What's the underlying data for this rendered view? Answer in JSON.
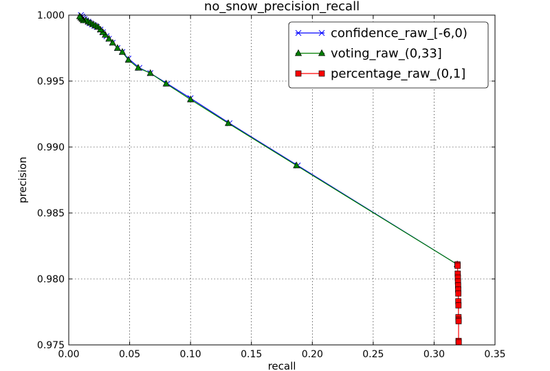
{
  "chart_data": {
    "type": "line",
    "title": "no_snow_precision_recall",
    "xlabel": "recall",
    "ylabel": "precision",
    "xlim": [
      0.0,
      0.35
    ],
    "ylim": [
      0.975,
      1.0
    ],
    "x_ticks": [
      "0.00",
      "0.05",
      "0.10",
      "0.15",
      "0.20",
      "0.25",
      "0.30",
      "0.35"
    ],
    "y_ticks": [
      "0.975",
      "0.980",
      "0.985",
      "0.990",
      "0.995",
      "1.000"
    ],
    "grid": true,
    "legend_position": "top-right",
    "series": [
      {
        "name": "confidence_raw_[-6,0)",
        "color": "#0000ff",
        "marker": "x",
        "x": [
          0.319,
          0.188,
          0.132,
          0.1,
          0.081,
          0.067,
          0.058,
          0.049,
          0.044,
          0.04,
          0.036,
          0.033,
          0.031,
          0.028,
          0.026,
          0.023,
          0.021,
          0.019,
          0.017,
          0.016,
          0.014,
          0.013,
          0.012,
          0.011,
          0.01
        ],
        "y": [
          0.9811,
          0.9886,
          0.9918,
          0.9937,
          0.9948,
          0.9956,
          0.996,
          0.9967,
          0.9972,
          0.9975,
          0.9979,
          0.9982,
          0.9984,
          0.9987,
          0.9989,
          0.9991,
          0.9992,
          0.9993,
          0.9994,
          0.9995,
          0.9996,
          0.9997,
          0.9998,
          0.9999,
          1.0
        ]
      },
      {
        "name": "voting_raw_(0,33]",
        "color": "#008000",
        "marker": "triangle",
        "x": [
          0.319,
          0.187,
          0.131,
          0.1,
          0.08,
          0.067,
          0.057,
          0.049,
          0.044,
          0.04,
          0.036,
          0.033,
          0.03,
          0.028,
          0.026,
          0.024,
          0.022,
          0.02,
          0.018,
          0.016,
          0.014,
          0.012,
          0.011,
          0.01,
          0.009
        ],
        "y": [
          0.9811,
          0.9886,
          0.9918,
          0.9936,
          0.9948,
          0.9956,
          0.996,
          0.9966,
          0.9972,
          0.9975,
          0.9979,
          0.9982,
          0.9985,
          0.9987,
          0.9989,
          0.9991,
          0.9992,
          0.9993,
          0.9994,
          0.9995,
          0.9996,
          0.9996,
          0.9997,
          0.9998,
          0.9999
        ]
      },
      {
        "name": "percentage_raw_(0,1]",
        "color": "#ff0000",
        "marker": "square",
        "x": [
          0.3192,
          0.3193,
          0.3194,
          0.3195,
          0.3196,
          0.3197,
          0.3198,
          0.3199,
          0.3199,
          0.32,
          0.32,
          0.3201,
          0.3201,
          0.3201,
          0.3202
        ],
        "y": [
          0.9811,
          0.981,
          0.9804,
          0.9801,
          0.9798,
          0.9795,
          0.9792,
          0.9789,
          0.9783,
          0.978,
          0.9771,
          0.9769,
          0.9768,
          0.9753,
          0.9752
        ]
      }
    ]
  }
}
